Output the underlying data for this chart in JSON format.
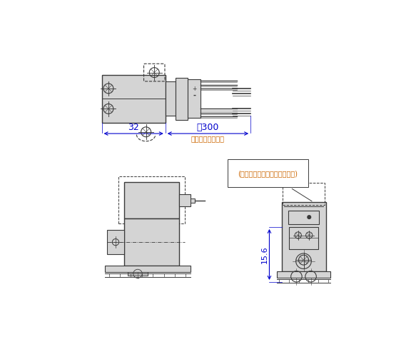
{
  "bg_color": "#ffffff",
  "line_color": "#3a3a3a",
  "fill_color": "#d4d4d4",
  "dim_color": "#0000cc",
  "annotation_color": "#cc6600",
  "dim_32": "32",
  "dim_300": "約30 0",
  "dim_300_sub": "(リード線長さ)",
  "dim_156": "15.6",
  "label_lamp": "(ランプ・サージ電圧保護回路)"
}
